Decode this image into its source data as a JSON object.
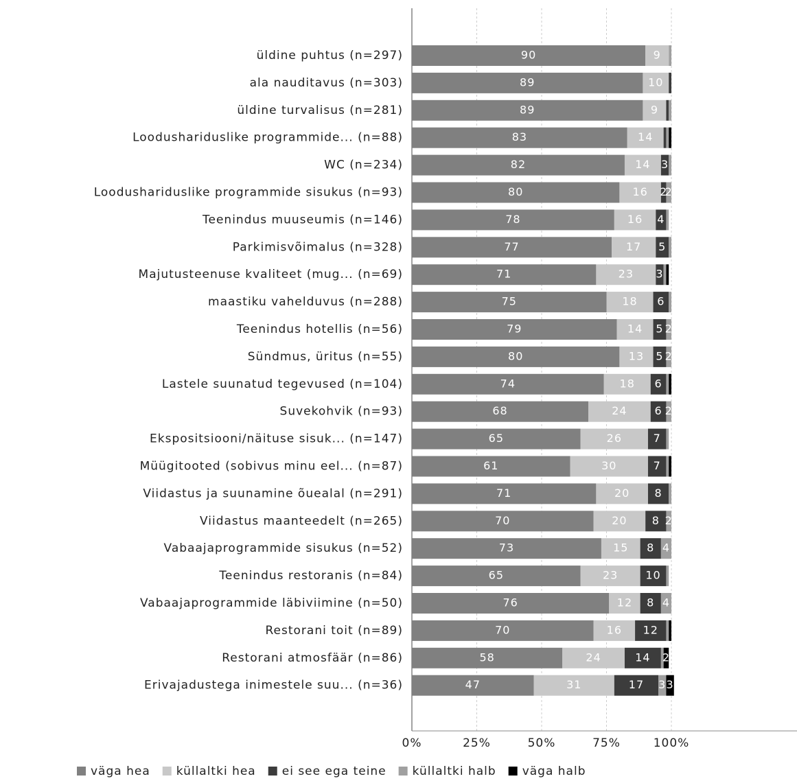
{
  "chart_data": {
    "type": "stacked-bar-horizontal",
    "categories": [
      "üldine puhtus (n=297)",
      "ala nauditavus (n=303)",
      "üldine turvalisus (n=281)",
      "Loodushariduslike programmide... (n=88)",
      "WC (n=234)",
      "Loodushariduslike programmide sisukus (n=93)",
      "Teenindus muuseumis (n=146)",
      "Parkimisvõimalus (n=328)",
      "Majutusteenuse kvaliteet (mug... (n=69)",
      "maastiku vahelduvus (n=288)",
      "Teenindus hotellis (n=56)",
      "Sündmus, üritus (n=55)",
      "Lastele suunatud tegevused (n=104)",
      "Suvekohvik (n=93)",
      "Ekspositsiooni/näituse sisuk... (n=147)",
      "Müügitooted (sobivus minu eel... (n=87)",
      "Viidastus ja suunamine õuealal (n=291)",
      "Viidastus maanteedelt (n=265)",
      "Vabaajaprogrammide sisukus (n=52)",
      "Teenindus restoranis (n=84)",
      "Vabaajaprogrammide läbiviimine (n=50)",
      "Restorani toit (n=89)",
      "Restorani atmosfäär (n=86)",
      "Erivajadustega inimestele suu... (n=36)"
    ],
    "series": [
      {
        "name": "väga hea",
        "color": "#808080",
        "values": [
          90,
          89,
          89,
          83,
          82,
          80,
          78,
          77,
          71,
          75,
          79,
          80,
          74,
          68,
          65,
          61,
          71,
          70,
          73,
          65,
          76,
          70,
          58,
          47
        ]
      },
      {
        "name": "küllaltki hea",
        "color": "#c8c8c8",
        "values": [
          9,
          10,
          9,
          14,
          14,
          16,
          16,
          17,
          23,
          18,
          14,
          13,
          18,
          24,
          26,
          30,
          20,
          20,
          15,
          23,
          12,
          16,
          24,
          31
        ]
      },
      {
        "name": "ei see ega teine",
        "color": "#3c3c3c",
        "values": [
          0,
          1,
          1,
          1,
          3,
          2,
          4,
          5,
          3,
          6,
          5,
          5,
          6,
          6,
          7,
          7,
          8,
          8,
          8,
          10,
          8,
          12,
          14,
          17
        ]
      },
      {
        "name": "küllaltki halb",
        "color": "#a0a0a0",
        "values": [
          1,
          0,
          1,
          1,
          1,
          2,
          1,
          1,
          1,
          1,
          2,
          2,
          1,
          2,
          1,
          1,
          1,
          2,
          4,
          1,
          4,
          1,
          1,
          3
        ]
      },
      {
        "name": "väga halb",
        "color": "#000000",
        "values": [
          0,
          0,
          0,
          1,
          0,
          0,
          0,
          0,
          1,
          0,
          0,
          0,
          1,
          0,
          0,
          1,
          0,
          0,
          0,
          0,
          0,
          1,
          2,
          3
        ]
      }
    ],
    "xlim": [
      0,
      100
    ],
    "xticks": [
      {
        "value": 0,
        "label": "0%"
      },
      {
        "value": 25,
        "label": "25%"
      },
      {
        "value": 50,
        "label": "50%"
      },
      {
        "value": 75,
        "label": "75%"
      },
      {
        "value": 100,
        "label": "100%"
      }
    ],
    "grid": true
  }
}
